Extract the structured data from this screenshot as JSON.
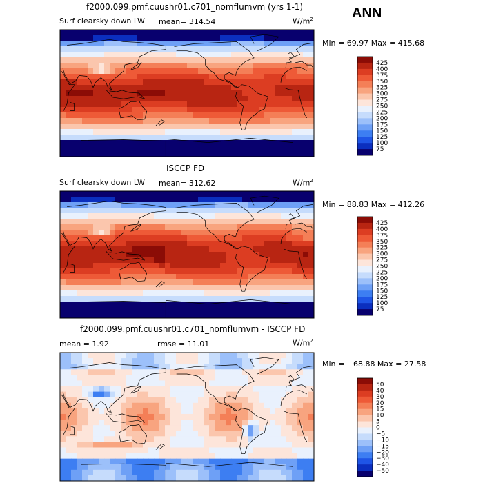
{
  "season": "ANN",
  "colors": {
    "abs": [
      "#08006e",
      "#0b2fbf",
      "#1f55e6",
      "#3d7ef2",
      "#6ea0f6",
      "#9cc0fa",
      "#c6dcfc",
      "#e9f1fd",
      "#fde5da",
      "#fbc6ad",
      "#f8a47f",
      "#f47f57",
      "#ee5a37",
      "#dc3d22",
      "#b82512",
      "#8b0c06"
    ],
    "diff": [
      "#08006e",
      "#0b2fbf",
      "#1f55e6",
      "#3d7ef2",
      "#6ea0f6",
      "#9cc0fa",
      "#c6dcfc",
      "#e9f1fd",
      "#fde5da",
      "#fbc6ad",
      "#f8a47f",
      "#f47f57",
      "#ee5a37",
      "#dc3d22",
      "#b82512",
      "#8b0c06"
    ]
  },
  "chart_data": [
    {
      "type": "heatmap",
      "title": "f2000.099.pmf.cuushr01.c701_nomflumvm (yrs 1-1)",
      "variable": "Surf clearsky down LW",
      "mean_text": "mean= 314.54",
      "units": "W/m",
      "units_exp": "2",
      "range_text": "Min =  69.97 Max = 415.68",
      "min": 69.97,
      "max": 415.68,
      "mean": 314.54,
      "levels": [
        "425",
        "400",
        "375",
        "350",
        "325",
        "300",
        "275",
        "250",
        "225",
        "200",
        "175",
        "150",
        "125",
        "100",
        "75"
      ]
    },
    {
      "type": "heatmap",
      "title": "ISCCP FD",
      "variable": "Surf clearsky down LW",
      "mean_text": "mean= 312.62",
      "units": "W/m",
      "units_exp": "2",
      "range_text": "Min =  88.83 Max = 412.26",
      "min": 88.83,
      "max": 412.26,
      "mean": 312.62,
      "levels": [
        "425",
        "400",
        "375",
        "350",
        "325",
        "300",
        "275",
        "250",
        "225",
        "200",
        "175",
        "150",
        "125",
        "100",
        "75"
      ]
    },
    {
      "type": "heatmap",
      "title": "f2000.099.pmf.cuushr01.c701_nomflumvm - ISCCP FD",
      "variable": "",
      "mean_text": "mean =    1.92",
      "rmse_text": "rmse =   11.01",
      "units": "W/m",
      "units_exp": "2",
      "range_text": "Min = −68.88 Max =   27.58",
      "min": -68.88,
      "max": 27.58,
      "mean": 1.92,
      "rmse": 11.01,
      "levels": [
        "50",
        "40",
        "30",
        "20",
        "15",
        "10",
        "5",
        "0",
        "−5",
        "−10",
        "−15",
        "−20",
        "−30",
        "−40",
        "−50"
      ]
    }
  ]
}
